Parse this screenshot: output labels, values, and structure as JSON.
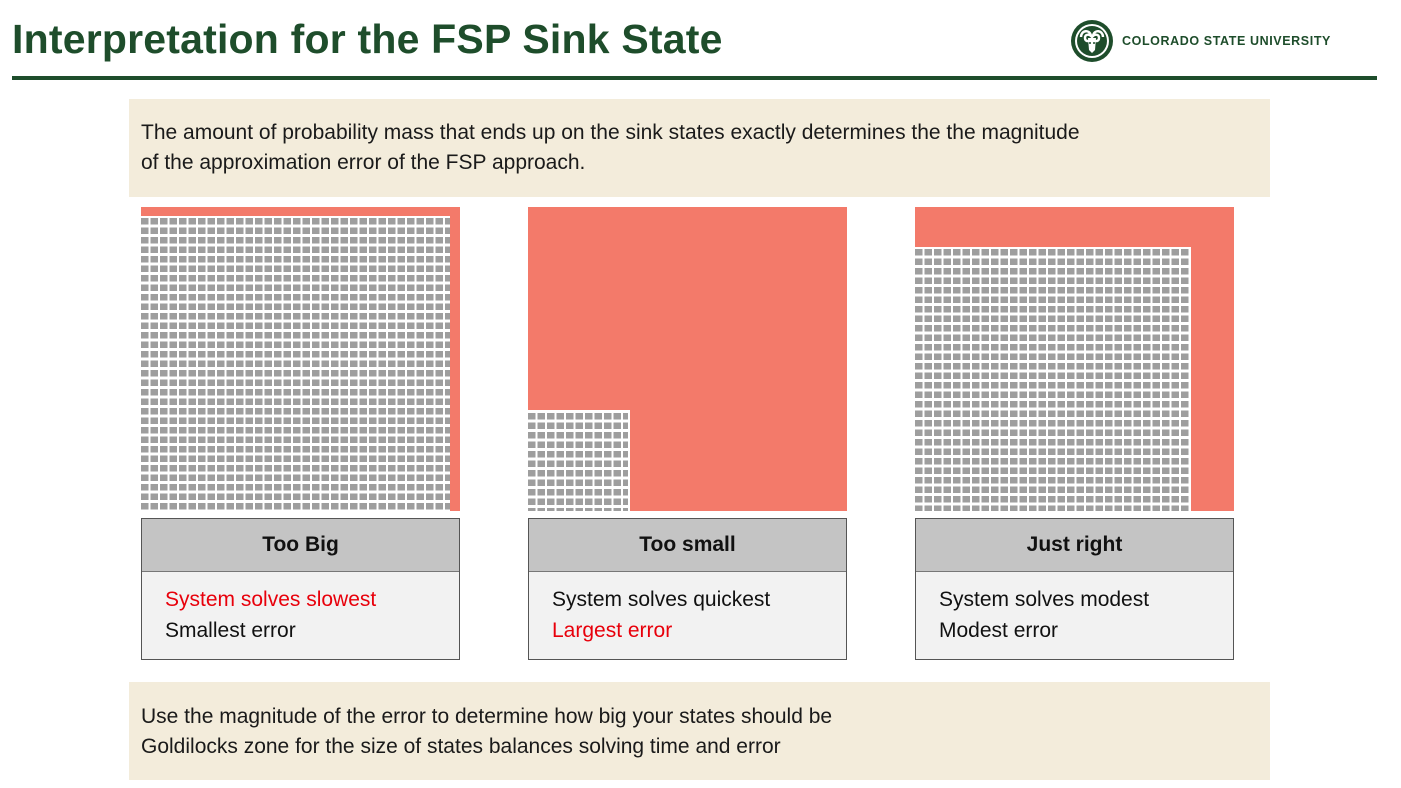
{
  "header": {
    "title": "Interpretation for the FSP Sink State",
    "logo_text": "COLORADO STATE UNIVERSITY",
    "accent_color": "#1e4d2b"
  },
  "intro": {
    "line1": "The amount of probability mass that ends up on the sink states exactly determines the the magnitude",
    "line2": "of the approximation error of the FSP approach."
  },
  "panels": [
    {
      "heading": "Too Big",
      "line1": "System solves slowest",
      "line2": "Smallest error",
      "highlight_line": 1
    },
    {
      "heading": "Too small",
      "line1": "System solves quickest",
      "line2": "Largest error",
      "highlight_line": 2
    },
    {
      "heading": "Just right",
      "line1": "System solves modest",
      "line2": "Modest error",
      "highlight_line": 2
    }
  ],
  "conclusion": {
    "line1": "Use the magnitude of the error to determine how big your states should be",
    "line2": "Goldilocks zone for the size of states balances solving time and error"
  },
  "colors": {
    "sink_state": "#f37a6a",
    "grid_cell": "#9e9e9e",
    "callout_bg": "#f3ecdb",
    "highlight_text": "#e8000b"
  },
  "icons": [
    "csu-ram-seal-logo"
  ]
}
